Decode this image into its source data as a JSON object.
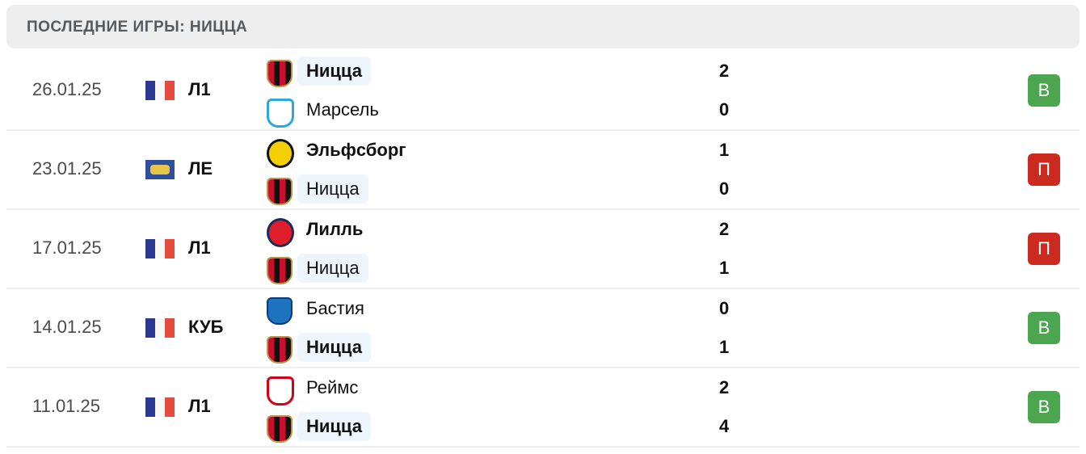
{
  "title": "ПОСЛЕДНИЕ ИГРЫ: НИЦЦА",
  "colors": {
    "win": "#4ca64f",
    "loss": "#cc2a1f",
    "highlight": "#eef5fd"
  },
  "matches": [
    {
      "date": "26.01.25",
      "flag": "france-flag",
      "league": "Л1",
      "home": {
        "name": "Ницца",
        "logo": "nice-logo",
        "score": "2",
        "bold": true,
        "hl": true
      },
      "away": {
        "name": "Марсель",
        "logo": "marseille-logo",
        "score": "0",
        "bold": false,
        "hl": false
      },
      "result": "В",
      "outcome": "win"
    },
    {
      "date": "23.01.25",
      "flag": "europe-league-flag",
      "league": "ЛЕ",
      "home": {
        "name": "Эльфсборг",
        "logo": "elfsborg-logo",
        "score": "1",
        "bold": true,
        "hl": false
      },
      "away": {
        "name": "Ницца",
        "logo": "nice-logo",
        "score": "0",
        "bold": false,
        "hl": true
      },
      "result": "П",
      "outcome": "loss"
    },
    {
      "date": "17.01.25",
      "flag": "france-flag",
      "league": "Л1",
      "home": {
        "name": "Лилль",
        "logo": "lille-logo",
        "score": "2",
        "bold": true,
        "hl": false
      },
      "away": {
        "name": "Ницца",
        "logo": "nice-logo",
        "score": "1",
        "bold": false,
        "hl": true
      },
      "result": "П",
      "outcome": "loss"
    },
    {
      "date": "14.01.25",
      "flag": "france-flag",
      "league": "КУБ",
      "home": {
        "name": "Бастия",
        "logo": "bastia-logo",
        "score": "0",
        "bold": false,
        "hl": false
      },
      "away": {
        "name": "Ницца",
        "logo": "nice-logo",
        "score": "1",
        "bold": true,
        "hl": true
      },
      "result": "В",
      "outcome": "win"
    },
    {
      "date": "11.01.25",
      "flag": "france-flag",
      "league": "Л1",
      "home": {
        "name": "Реймс",
        "logo": "reims-logo",
        "score": "2",
        "bold": false,
        "hl": false
      },
      "away": {
        "name": "Ницца",
        "logo": "nice-logo",
        "score": "4",
        "bold": true,
        "hl": true
      },
      "result": "В",
      "outcome": "win"
    }
  ]
}
